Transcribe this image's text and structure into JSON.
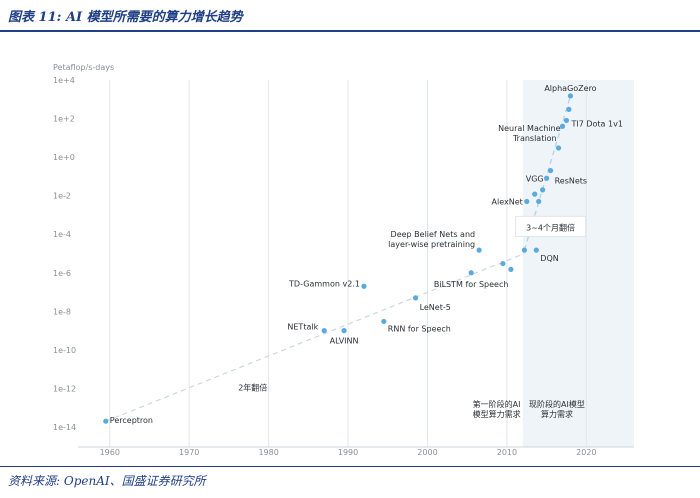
{
  "figure": {
    "title": "图表 11: AI 模型所需要的算力增长趋势",
    "source": "资料来源: OpenAI、国盛证券研究所"
  },
  "chart_data": {
    "type": "scatter",
    "ylabel": "Petaflop/s-days",
    "xlabel": "",
    "yscale": "log",
    "xlim": [
      1956,
      2026
    ],
    "ylim": [
      1e-14,
      10000.0
    ],
    "x_ticks": [
      "1960",
      "1970",
      "1980",
      "1990",
      "2000",
      "2010",
      "2020"
    ],
    "y_ticks": [
      "1e+4",
      "1e+2",
      "1e+0",
      "1e-2",
      "1e-4",
      "1e-6",
      "1e-8",
      "1e-10",
      "1e-12",
      "1e-14"
    ],
    "grid": "vertical",
    "shaded_region": {
      "x_from": 2012,
      "x_to": 2026
    },
    "points": [
      {
        "x": 1959.5,
        "y": 2e-14
      },
      {
        "x": 1987,
        "y": 1e-09
      },
      {
        "x": 1989.5,
        "y": 1e-09
      },
      {
        "x": 1992,
        "y": 2e-07
      },
      {
        "x": 1994.5,
        "y": 3e-09
      },
      {
        "x": 1998.5,
        "y": 5e-08
      },
      {
        "x": 2005.5,
        "y": 1e-06
      },
      {
        "x": 2006.5,
        "y": 1.5e-05
      },
      {
        "x": 2009.5,
        "y": 3e-06
      },
      {
        "x": 2010.5,
        "y": 1.5e-06
      },
      {
        "x": 2012.2,
        "y": 1.5e-05
      },
      {
        "x": 2012.5,
        "y": 0.005
      },
      {
        "x": 2013.5,
        "y": 0.012
      },
      {
        "x": 2013.7,
        "y": 1.5e-05
      },
      {
        "x": 2014.0,
        "y": 0.005
      },
      {
        "x": 2014.5,
        "y": 0.02
      },
      {
        "x": 2015.0,
        "y": 0.08
      },
      {
        "x": 2015.5,
        "y": 0.2
      },
      {
        "x": 2016.5,
        "y": 3
      },
      {
        "x": 2017.0,
        "y": 40
      },
      {
        "x": 2017.5,
        "y": 80
      },
      {
        "x": 2017.8,
        "y": 300
      },
      {
        "x": 2018.0,
        "y": 1500
      }
    ],
    "labels": [
      {
        "text": "Perceptron",
        "x": 1959.5,
        "y": 2e-14,
        "anchor": "start",
        "dx": 4,
        "dy": -1
      },
      {
        "text": "NETtalk",
        "x": 1987,
        "y": 1e-09,
        "anchor": "end",
        "dx": -6,
        "dy": -4
      },
      {
        "text": "ALVINN",
        "x": 1989.5,
        "y": 1e-09,
        "anchor": "middle",
        "dx": 0,
        "dy": 10
      },
      {
        "text": "TD-Gammon v2.1",
        "x": 1992,
        "y": 2e-07,
        "anchor": "end",
        "dx": -4,
        "dy": -3
      },
      {
        "text": "RNN for Speech",
        "x": 1994.5,
        "y": 3e-09,
        "anchor": "start",
        "dx": 4,
        "dy": 7
      },
      {
        "text": "LeNet-5",
        "x": 1998.5,
        "y": 5e-08,
        "anchor": "start",
        "dx": 4,
        "dy": 9
      },
      {
        "text": "BiLSTM for Speech",
        "x": 2005.5,
        "y": 1e-06,
        "anchor": "middle",
        "dx": 0,
        "dy": 11
      },
      {
        "text": "Deep Belief Nets and",
        "x": 2006.5,
        "y": 1.5e-05,
        "anchor": "end",
        "dx": -4,
        "dy": -16
      },
      {
        "text": "layer-wise pretraining",
        "x": 2006.5,
        "y": 1.5e-05,
        "anchor": "end",
        "dx": -4,
        "dy": -6
      },
      {
        "text": "DQN",
        "x": 2013.7,
        "y": 1.5e-05,
        "anchor": "start",
        "dx": 4,
        "dy": 8
      },
      {
        "text": "AlexNet",
        "x": 2012.5,
        "y": 0.005,
        "anchor": "end",
        "dx": -4,
        "dy": 0
      },
      {
        "text": "VGG",
        "x": 2015.0,
        "y": 0.08,
        "anchor": "end",
        "dx": -3,
        "dy": 0
      },
      {
        "text": "ResNets",
        "x": 2015.5,
        "y": 0.2,
        "anchor": "start",
        "dx": 4,
        "dy": 10
      },
      {
        "text": "TI7 Dota 1v1",
        "x": 2017.5,
        "y": 80,
        "anchor": "start",
        "dx": 5,
        "dy": 3
      },
      {
        "text": "Neural Machine",
        "x": 2016.5,
        "y": 3,
        "anchor": "end",
        "dx": 2,
        "dy": -20
      },
      {
        "text": "Translation",
        "x": 2016.5,
        "y": 3,
        "anchor": "end",
        "dx": -2,
        "dy": -10
      },
      {
        "text": "AlphaGoZero",
        "x": 2018.0,
        "y": 1500,
        "anchor": "middle",
        "dx": 0,
        "dy": -8
      }
    ],
    "trend_lines": [
      {
        "label": "2年翻倍",
        "from": [
          1959.5,
          2e-14
        ],
        "to": [
          2012.2,
          1e-05
        ]
      },
      {
        "label": "3~4个月翻倍",
        "from": [
          2012.2,
          1.5e-05
        ],
        "to": [
          2018.0,
          1500
        ]
      }
    ],
    "annotations": [
      {
        "lines": [
          "2年翻倍"
        ],
        "x": 1978,
        "y": 1e-12
      },
      {
        "lines": [
          "3~4个月翻倍"
        ],
        "x": 2015.5,
        "y": 0.0002,
        "boxed": true
      },
      {
        "lines": [
          "第一阶段的AI",
          "模型算力需求"
        ],
        "x": 2008.7,
        "y": 2e-14
      },
      {
        "lines": [
          "现阶段的AI模型",
          "算力需求"
        ],
        "x": 2016.3,
        "y": 2e-14
      }
    ]
  }
}
